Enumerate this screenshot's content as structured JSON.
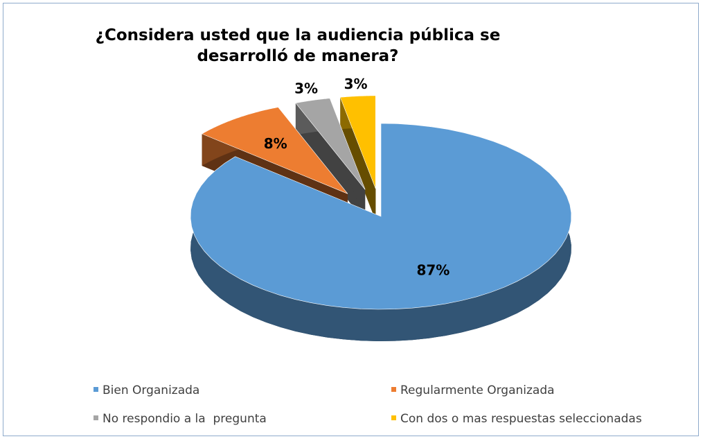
{
  "chart_data": {
    "type": "pie",
    "title": "¿Considera usted que la audiencia pública se desarrolló de manera?",
    "categories": [
      "Bien Organizada",
      "Regularmente Organizada",
      "No respondio a la  pregunta",
      "Con dos o mas respuestas seleccionadas"
    ],
    "values": [
      87,
      8,
      3,
      3
    ],
    "value_labels": [
      "87%",
      "8%",
      "3%",
      "3%"
    ],
    "colors": [
      "#5b9bd5",
      "#ed7d31",
      "#a5a5a5",
      "#ffc000"
    ]
  }
}
